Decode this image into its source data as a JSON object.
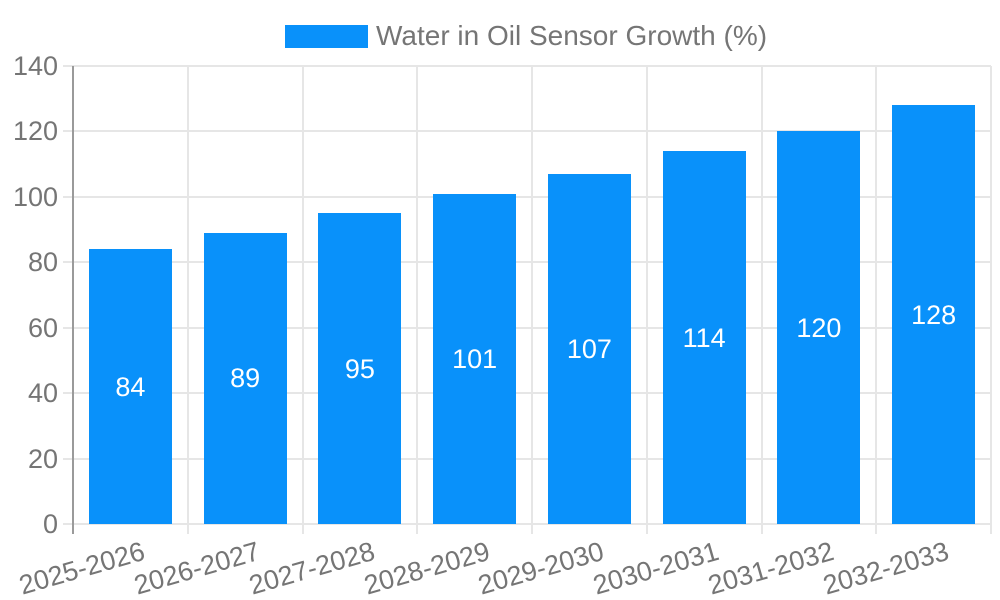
{
  "chart_data": {
    "type": "bar",
    "title": "Water in Oil Sensor Growth (%)",
    "categories": [
      "2025-2026",
      "2026-2027",
      "2027-2028",
      "2028-2029",
      "2029-2030",
      "2030-2031",
      "2031-2032",
      "2032-2033"
    ],
    "values": [
      84,
      89,
      95,
      101,
      107,
      114,
      120,
      128
    ],
    "value_labels": [
      "84",
      "89",
      "95",
      "101",
      "107",
      "114",
      "120",
      "128"
    ],
    "xlabel": "",
    "ylabel": "",
    "ylim": [
      0,
      140
    ],
    "yticks": [
      0,
      20,
      40,
      60,
      80,
      100,
      120,
      140
    ],
    "grid": true,
    "legend_position": "top-center",
    "value_label_position": "inside-center"
  },
  "legend": {
    "label": "Water in Oil Sensor Growth (%)"
  },
  "colors": {
    "bar": "#0991fa",
    "grid": "#e6e6e6",
    "axis": "#9a9a9a",
    "tick_text": "#757575",
    "value_text": "#ffffff",
    "background": "#ffffff"
  }
}
